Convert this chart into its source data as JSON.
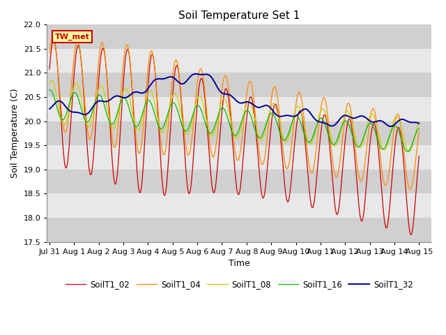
{
  "title": "Soil Temperature Set 1",
  "xlabel": "Time",
  "ylabel": "Soil Temperature (C)",
  "ylim": [
    17.5,
    22.0
  ],
  "xlim_days": [
    -0.1,
    15.5
  ],
  "xtick_positions": [
    0,
    1,
    2,
    3,
    4,
    5,
    6,
    7,
    8,
    9,
    10,
    11,
    12,
    13,
    14,
    15
  ],
  "xtick_labels": [
    "Jul 31",
    "Aug 1",
    "Aug 2",
    "Aug 3",
    "Aug 4",
    "Aug 5",
    "Aug 6",
    "Aug 7",
    "Aug 8",
    "Aug 9",
    "Aug 10",
    "Aug 11",
    "Aug 12",
    "Aug 13",
    "Aug 14",
    "Aug 15"
  ],
  "annotation_text": "TW_met",
  "annotation_bg": "#FFFFA0",
  "annotation_border": "#CC0000",
  "legend_labels": [
    "SoilT1_02",
    "SoilT1_04",
    "SoilT1_08",
    "SoilT1_16",
    "SoilT1_32"
  ],
  "line_colors": [
    "#CC0000",
    "#FF8800",
    "#CCCC00",
    "#00BB00",
    "#000099"
  ],
  "background_color": "#FFFFFF",
  "plot_bg_light": "#E8E8E8",
  "plot_bg_dark": "#D0D0D0",
  "title_fontsize": 11,
  "axis_label_fontsize": 9,
  "tick_fontsize": 8
}
